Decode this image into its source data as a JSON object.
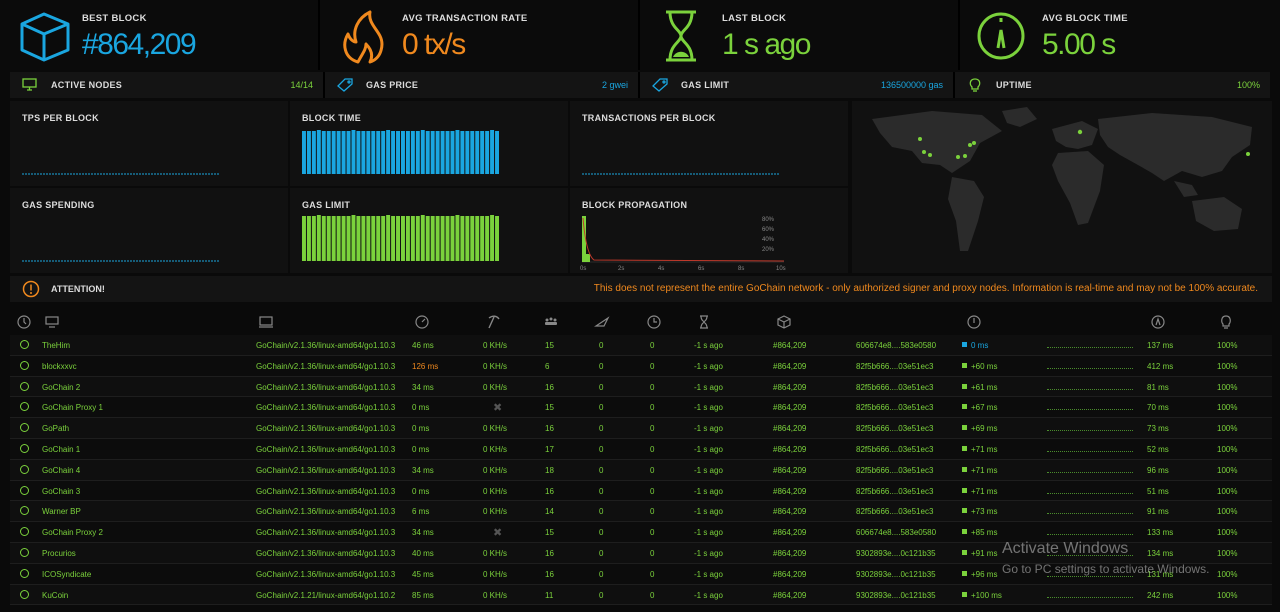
{
  "stats": [
    {
      "label": "BEST BLOCK",
      "value": "#864,209",
      "icon": "cube-icon",
      "color": "#1aa6e0"
    },
    {
      "label": "AVG TRANSACTION RATE",
      "value": "0 tx/s",
      "icon": "flame-icon",
      "color": "#f0891e"
    },
    {
      "label": "LAST BLOCK",
      "value": "1 s ago",
      "icon": "hourglass-icon",
      "color": "#7bd23c"
    },
    {
      "label": "AVG BLOCK TIME",
      "value": "5.00 s",
      "icon": "gauge-icon",
      "color": "#7bd23c"
    }
  ],
  "mini_stats": [
    {
      "label": "ACTIVE NODES",
      "value": "14/14",
      "icon": "monitor-icon",
      "color": "#7bd23c"
    },
    {
      "label": "GAS PRICE",
      "value": "2 gwei",
      "icon": "tag-icon",
      "color": "#1aa6e0"
    },
    {
      "label": "GAS LIMIT",
      "value": "136500000 gas",
      "icon": "tag-icon",
      "color": "#1aa6e0"
    },
    {
      "label": "UPTIME",
      "value": "100%",
      "icon": "lightbulb-icon",
      "color": "#7bd23c"
    }
  ],
  "charts": {
    "tps": {
      "label": "TPS PER BLOCK"
    },
    "block_time": {
      "label": "BLOCK TIME",
      "bars": 40
    },
    "txs": {
      "label": "TRANSACTIONS PER BLOCK"
    },
    "gas_spending": {
      "label": "GAS SPENDING"
    },
    "gas_limit": {
      "label": "GAS LIMIT",
      "bars": 40
    },
    "propagation": {
      "label": "BLOCK PROPAGATION",
      "x_ticks": [
        "0s",
        "2s",
        "4s",
        "6s",
        "8s",
        "10s"
      ],
      "y_ticks": [
        "80%",
        "60%",
        "40%",
        "20%"
      ]
    }
  },
  "attention": {
    "label": "ATTENTION!",
    "message": "This does not represent the entire GoChain network - only authorized signer and proxy nodes. Information is real-time and may not be 100% accurate."
  },
  "table_header_icons": [
    "status-icon",
    "node-icon",
    "client-icon",
    "latency-icon",
    "mining-icon",
    "peers-icon",
    "pending-icon",
    "last-block-icon",
    "block-time-icon",
    "block-icon",
    "block-hash-icon",
    "propagation-icon",
    "avg-propagation-icon",
    "uptime-icon"
  ],
  "nodes": [
    {
      "name": "TheHim",
      "client": "GoChain/v2.1.36/linux-amd64/go1.10.3",
      "latency": "46 ms",
      "latency_warn": false,
      "hash": "0 KH/s",
      "peers": "15",
      "pending": "0",
      "c7": "0",
      "last": "-1 s ago",
      "block": "#864,209",
      "bhash": "606674e8....583e0580",
      "prop": "0 ms",
      "prop_color": "#1aa6e0",
      "avg": "137 ms",
      "uptime": "100%"
    },
    {
      "name": "blockxxvc",
      "client": "GoChain/v2.1.36/linux-amd64/go1.10.3",
      "latency": "126 ms",
      "latency_warn": true,
      "hash": "0 KH/s",
      "peers": "6",
      "pending": "0",
      "c7": "0",
      "last": "-1 s ago",
      "block": "#864,209",
      "bhash": "82f5b666....03e51ec3",
      "prop": "+60 ms",
      "prop_color": "#7bd23c",
      "avg": "412 ms",
      "uptime": "100%"
    },
    {
      "name": "GoChain 2",
      "client": "GoChain/v2.1.36/linux-amd64/go1.10.3",
      "latency": "34 ms",
      "latency_warn": false,
      "hash": "0 KH/s",
      "peers": "16",
      "pending": "0",
      "c7": "0",
      "last": "-1 s ago",
      "block": "#864,209",
      "bhash": "82f5b666....03e51ec3",
      "prop": "+61 ms",
      "prop_color": "#7bd23c",
      "avg": "81 ms",
      "uptime": "100%"
    },
    {
      "name": "GoChain Proxy 1",
      "client": "GoChain/v2.1.36/linux-amd64/go1.10.3",
      "latency": "0 ms",
      "latency_warn": false,
      "hash": "",
      "peers": "15",
      "pending": "0",
      "c7": "0",
      "last": "-1 s ago",
      "block": "#864,209",
      "bhash": "82f5b666....03e51ec3",
      "prop": "+67 ms",
      "prop_color": "#7bd23c",
      "avg": "70 ms",
      "uptime": "100%"
    },
    {
      "name": "GoPath",
      "client": "GoChain/v2.1.36/linux-amd64/go1.10.3",
      "latency": "0 ms",
      "latency_warn": false,
      "hash": "0 KH/s",
      "peers": "16",
      "pending": "0",
      "c7": "0",
      "last": "-1 s ago",
      "block": "#864,209",
      "bhash": "82f5b666....03e51ec3",
      "prop": "+69 ms",
      "prop_color": "#7bd23c",
      "avg": "73 ms",
      "uptime": "100%"
    },
    {
      "name": "GoChain 1",
      "client": "GoChain/v2.1.36/linux-amd64/go1.10.3",
      "latency": "0 ms",
      "latency_warn": false,
      "hash": "0 KH/s",
      "peers": "17",
      "pending": "0",
      "c7": "0",
      "last": "-1 s ago",
      "block": "#864,209",
      "bhash": "82f5b666....03e51ec3",
      "prop": "+71 ms",
      "prop_color": "#7bd23c",
      "avg": "52 ms",
      "uptime": "100%"
    },
    {
      "name": "GoChain 4",
      "client": "GoChain/v2.1.36/linux-amd64/go1.10.3",
      "latency": "34 ms",
      "latency_warn": false,
      "hash": "0 KH/s",
      "peers": "18",
      "pending": "0",
      "c7": "0",
      "last": "-1 s ago",
      "block": "#864,209",
      "bhash": "82f5b666....03e51ec3",
      "prop": "+71 ms",
      "prop_color": "#7bd23c",
      "avg": "96 ms",
      "uptime": "100%"
    },
    {
      "name": "GoChain 3",
      "client": "GoChain/v2.1.36/linux-amd64/go1.10.3",
      "latency": "0 ms",
      "latency_warn": false,
      "hash": "0 KH/s",
      "peers": "16",
      "pending": "0",
      "c7": "0",
      "last": "-1 s ago",
      "block": "#864,209",
      "bhash": "82f5b666....03e51ec3",
      "prop": "+71 ms",
      "prop_color": "#7bd23c",
      "avg": "51 ms",
      "uptime": "100%"
    },
    {
      "name": "Warner BP",
      "client": "GoChain/v2.1.36/linux-amd64/go1.10.3",
      "latency": "6 ms",
      "latency_warn": false,
      "hash": "0 KH/s",
      "peers": "14",
      "pending": "0",
      "c7": "0",
      "last": "-1 s ago",
      "block": "#864,209",
      "bhash": "82f5b666....03e51ec3",
      "prop": "+73 ms",
      "prop_color": "#7bd23c",
      "avg": "91 ms",
      "uptime": "100%"
    },
    {
      "name": "GoChain Proxy 2",
      "client": "GoChain/v2.1.36/linux-amd64/go1.10.3",
      "latency": "34 ms",
      "latency_warn": false,
      "hash": "",
      "peers": "15",
      "pending": "0",
      "c7": "0",
      "last": "-1 s ago",
      "block": "#864,209",
      "bhash": "606674e8....583e0580",
      "prop": "+85 ms",
      "prop_color": "#7bd23c",
      "avg": "133 ms",
      "uptime": "100%"
    },
    {
      "name": "Procurios",
      "client": "GoChain/v2.1.36/linux-amd64/go1.10.3",
      "latency": "40 ms",
      "latency_warn": false,
      "hash": "0 KH/s",
      "peers": "16",
      "pending": "0",
      "c7": "0",
      "last": "-1 s ago",
      "block": "#864,209",
      "bhash": "9302893e....0c121b35",
      "prop": "+91 ms",
      "prop_color": "#7bd23c",
      "avg": "134 ms",
      "uptime": "100%"
    },
    {
      "name": "ICOSyndicate",
      "client": "GoChain/v2.1.36/linux-amd64/go1.10.3",
      "latency": "45 ms",
      "latency_warn": false,
      "hash": "0 KH/s",
      "peers": "16",
      "pending": "0",
      "c7": "0",
      "last": "-1 s ago",
      "block": "#864,209",
      "bhash": "9302893e....0c121b35",
      "prop": "+96 ms",
      "prop_color": "#7bd23c",
      "avg": "131 ms",
      "uptime": "100%"
    },
    {
      "name": "KuCoin",
      "client": "GoChain/v2.1.21/linux-amd64/go1.10.2",
      "latency": "85 ms",
      "latency_warn": false,
      "hash": "0 KH/s",
      "peers": "11",
      "pending": "0",
      "c7": "0",
      "last": "-1 s ago",
      "block": "#864,209",
      "bhash": "9302893e....0c121b35",
      "prop": "+100 ms",
      "prop_color": "#7bd23c",
      "avg": "242 ms",
      "uptime": "100%"
    }
  ],
  "watermark": {
    "line1": "Activate Windows",
    "line2": "Go to PC settings to activate Windows."
  }
}
